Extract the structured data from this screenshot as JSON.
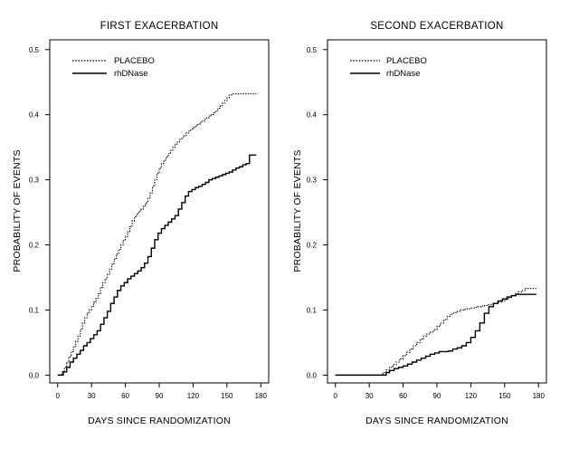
{
  "figure": {
    "panels": [
      "first",
      "second"
    ]
  },
  "chart_data": [
    {
      "id": "first",
      "type": "line",
      "step": true,
      "title": "FIRST EXACERBATION",
      "xlabel": "DAYS SINCE RANDOMIZATION",
      "ylabel": "PROBABILITY OF EVENTS",
      "xlim": [
        -7,
        187
      ],
      "ylim": [
        -0.012,
        0.515
      ],
      "x_ticks": [
        0,
        30,
        60,
        90,
        120,
        150,
        180
      ],
      "y_ticks": [
        "0.0",
        "0.1",
        "0.2",
        "0.3",
        "0.4",
        "0.5"
      ],
      "grid": false,
      "legend_position": "top-left",
      "legend": [
        "PLACEBO",
        "rhDNase"
      ],
      "series": [
        {
          "name": "PLACEBO",
          "style": "dotted",
          "x": [
            0,
            4,
            6,
            8,
            10,
            12,
            14,
            16,
            18,
            20,
            22,
            24,
            26,
            28,
            30,
            32,
            34,
            36,
            38,
            40,
            42,
            44,
            46,
            48,
            50,
            52,
            54,
            56,
            58,
            60,
            62,
            64,
            66,
            68,
            70,
            72,
            74,
            76,
            78,
            80,
            82,
            84,
            86,
            88,
            90,
            92,
            94,
            96,
            98,
            100,
            102,
            104,
            106,
            108,
            110,
            112,
            114,
            116,
            118,
            120,
            122,
            124,
            126,
            128,
            130,
            132,
            134,
            136,
            138,
            140,
            142,
            144,
            146,
            148,
            150,
            152,
            154,
            156,
            158,
            160,
            176
          ],
          "y": [
            0.0,
            0.005,
            0.012,
            0.02,
            0.028,
            0.036,
            0.044,
            0.052,
            0.06,
            0.07,
            0.08,
            0.088,
            0.095,
            0.1,
            0.106,
            0.112,
            0.118,
            0.125,
            0.135,
            0.142,
            0.148,
            0.155,
            0.163,
            0.17,
            0.178,
            0.186,
            0.193,
            0.2,
            0.207,
            0.213,
            0.22,
            0.228,
            0.237,
            0.243,
            0.248,
            0.252,
            0.255,
            0.26,
            0.265,
            0.272,
            0.28,
            0.29,
            0.3,
            0.31,
            0.318,
            0.325,
            0.33,
            0.335,
            0.34,
            0.345,
            0.35,
            0.355,
            0.358,
            0.362,
            0.365,
            0.368,
            0.372,
            0.375,
            0.378,
            0.38,
            0.383,
            0.385,
            0.388,
            0.39,
            0.393,
            0.395,
            0.398,
            0.4,
            0.403,
            0.406,
            0.41,
            0.414,
            0.418,
            0.422,
            0.426,
            0.43,
            0.432,
            0.432,
            0.432,
            0.432,
            0.432
          ]
        },
        {
          "name": "rhDNase",
          "style": "solid",
          "x": [
            0,
            5,
            8,
            11,
            14,
            17,
            20,
            23,
            26,
            29,
            32,
            35,
            38,
            41,
            44,
            47,
            50,
            53,
            56,
            59,
            62,
            65,
            68,
            71,
            74,
            77,
            80,
            83,
            86,
            89,
            92,
            95,
            98,
            101,
            104,
            107,
            110,
            113,
            116,
            119,
            122,
            125,
            128,
            131,
            134,
            137,
            140,
            143,
            146,
            149,
            152,
            155,
            158,
            161,
            164,
            167,
            170,
            176
          ],
          "y": [
            0.0,
            0.005,
            0.012,
            0.02,
            0.026,
            0.032,
            0.038,
            0.045,
            0.05,
            0.056,
            0.062,
            0.068,
            0.078,
            0.088,
            0.098,
            0.11,
            0.12,
            0.13,
            0.137,
            0.142,
            0.148,
            0.152,
            0.156,
            0.16,
            0.165,
            0.172,
            0.182,
            0.195,
            0.208,
            0.218,
            0.225,
            0.23,
            0.235,
            0.24,
            0.245,
            0.255,
            0.265,
            0.275,
            0.282,
            0.285,
            0.288,
            0.29,
            0.293,
            0.296,
            0.3,
            0.302,
            0.304,
            0.306,
            0.308,
            0.31,
            0.312,
            0.315,
            0.318,
            0.32,
            0.323,
            0.325,
            0.338,
            0.338
          ]
        }
      ]
    },
    {
      "id": "second",
      "type": "line",
      "step": true,
      "title": "SECOND EXACERBATION",
      "xlabel": "DAYS SINCE RANDOMIZATION",
      "ylabel": "PROBABILITY OF EVENTS",
      "xlim": [
        -7,
        187
      ],
      "ylim": [
        -0.012,
        0.515
      ],
      "x_ticks": [
        0,
        30,
        60,
        90,
        120,
        150,
        180
      ],
      "y_ticks": [
        "0.0",
        "0.1",
        "0.2",
        "0.3",
        "0.4",
        "0.5"
      ],
      "grid": false,
      "legend_position": "top-left",
      "legend": [
        "PLACEBO",
        "rhDNase"
      ],
      "series": [
        {
          "name": "PLACEBO",
          "style": "dotted",
          "x": [
            0,
            42,
            45,
            48,
            51,
            54,
            57,
            60,
            63,
            66,
            69,
            72,
            75,
            78,
            81,
            84,
            87,
            90,
            93,
            96,
            99,
            102,
            105,
            108,
            111,
            114,
            117,
            120,
            123,
            126,
            129,
            132,
            135,
            138,
            141,
            144,
            147,
            150,
            153,
            156,
            159,
            162,
            165,
            168,
            178
          ],
          "y": [
            0.0,
            0.004,
            0.008,
            0.012,
            0.016,
            0.02,
            0.025,
            0.03,
            0.035,
            0.04,
            0.045,
            0.05,
            0.055,
            0.06,
            0.063,
            0.066,
            0.07,
            0.075,
            0.08,
            0.085,
            0.09,
            0.094,
            0.096,
            0.098,
            0.1,
            0.101,
            0.102,
            0.103,
            0.104,
            0.105,
            0.106,
            0.107,
            0.108,
            0.109,
            0.11,
            0.112,
            0.114,
            0.116,
            0.119,
            0.122,
            0.125,
            0.128,
            0.13,
            0.133,
            0.133
          ]
        },
        {
          "name": "rhDNase",
          "style": "solid",
          "x": [
            0,
            45,
            48,
            52,
            56,
            60,
            64,
            68,
            72,
            76,
            80,
            84,
            88,
            92,
            96,
            100,
            104,
            108,
            112,
            116,
            120,
            124,
            128,
            132,
            136,
            140,
            144,
            148,
            152,
            156,
            160,
            178
          ],
          "y": [
            0.0,
            0.004,
            0.007,
            0.01,
            0.012,
            0.014,
            0.017,
            0.02,
            0.023,
            0.026,
            0.029,
            0.032,
            0.034,
            0.036,
            0.036,
            0.037,
            0.04,
            0.042,
            0.045,
            0.05,
            0.058,
            0.068,
            0.08,
            0.095,
            0.105,
            0.11,
            0.114,
            0.117,
            0.12,
            0.122,
            0.124,
            0.124
          ]
        }
      ]
    }
  ]
}
